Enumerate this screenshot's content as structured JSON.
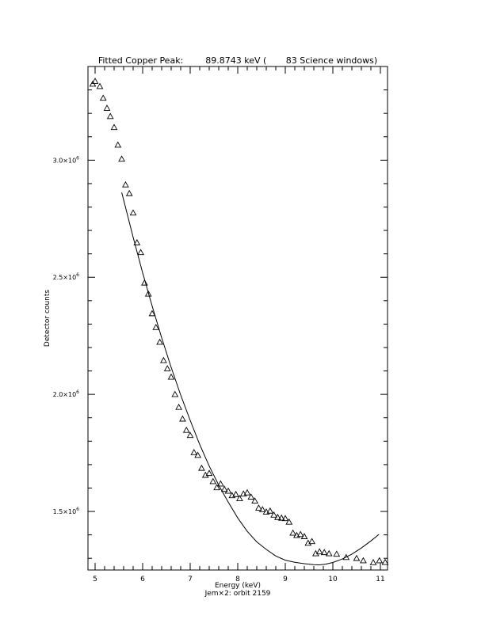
{
  "chart_data": {
    "type": "scatter",
    "title": "Fitted Copper Peak:        89.8743 keV (       83 Science windows)",
    "xlabel": "Energy (keV)",
    "ylabel": "Detector counts",
    "subtitle": "Jem×2: orbit 2159",
    "xlim": [
      4.85,
      11.15
    ],
    "ylim": [
      1250000,
      3400000
    ],
    "x_ticks": [
      {
        "value": 5,
        "label": "5"
      },
      {
        "value": 6,
        "label": "6"
      },
      {
        "value": 7,
        "label": "7"
      },
      {
        "value": 8,
        "label": "8"
      },
      {
        "value": 9,
        "label": "9"
      },
      {
        "value": 10,
        "label": "10"
      },
      {
        "value": 11,
        "label": "11"
      }
    ],
    "y_ticks": [
      {
        "value": 1500000,
        "mantissa": "1.5×10",
        "exp": "6"
      },
      {
        "value": 2000000,
        "mantissa": "2.0×10",
        "exp": "6"
      },
      {
        "value": 2500000,
        "mantissa": "2.5×10",
        "exp": "6"
      },
      {
        "value": 3000000,
        "mantissa": "3.0×10",
        "exp": "6"
      }
    ],
    "series": [
      {
        "marker": "triangle",
        "x": [
          4.95,
          5.0,
          5.1,
          5.17,
          5.25,
          5.32,
          5.4,
          5.48,
          5.56,
          5.64,
          5.72,
          5.8,
          5.88,
          5.96,
          6.04,
          6.12,
          6.2,
          6.28,
          6.36,
          6.44,
          6.52,
          6.6,
          6.68,
          6.76,
          6.84,
          6.92,
          7.0,
          7.08,
          7.16,
          7.24,
          7.32,
          7.4,
          7.48,
          7.56,
          7.64,
          7.72,
          7.8,
          7.88,
          7.96,
          8.04,
          8.12,
          8.2,
          8.28,
          8.36,
          8.44,
          8.52,
          8.6,
          8.68,
          8.76,
          8.84,
          8.92,
          9.0,
          9.08,
          9.16,
          9.24,
          9.32,
          9.4,
          9.48,
          9.56,
          9.64,
          9.72,
          9.82,
          9.92,
          10.08,
          10.28,
          10.5,
          10.64,
          10.85,
          10.98,
          11.1
        ],
        "y": [
          3325000,
          3337000,
          3315000,
          3265000,
          3222000,
          3187000,
          3140000,
          3065000,
          3005000,
          2895000,
          2858000,
          2775000,
          2648000,
          2606000,
          2476000,
          2429000,
          2345000,
          2286000,
          2223000,
          2145000,
          2110000,
          2074000,
          2000000,
          1945000,
          1895000,
          1847000,
          1825000,
          1752000,
          1740000,
          1685000,
          1655000,
          1663000,
          1628000,
          1602000,
          1618000,
          1595000,
          1587000,
          1568000,
          1573000,
          1555000,
          1575000,
          1580000,
          1562000,
          1545000,
          1515000,
          1508000,
          1498000,
          1502000,
          1485000,
          1475000,
          1472000,
          1470000,
          1455000,
          1408000,
          1398000,
          1402000,
          1393000,
          1365000,
          1372000,
          1320000,
          1328000,
          1325000,
          1320000,
          1318000,
          1304000,
          1300000,
          1290000,
          1282000,
          1290000,
          1283000
        ]
      },
      {
        "marker": "line",
        "x": [
          5.56,
          5.8,
          6.0,
          6.2,
          6.4,
          6.6,
          6.8,
          7.0,
          7.2,
          7.4,
          7.6,
          7.8,
          8.0,
          8.2,
          8.4,
          8.6,
          8.8,
          9.0,
          9.2,
          9.4,
          9.6,
          9.72,
          9.85,
          10.0,
          10.2,
          10.4,
          10.6,
          10.8,
          10.97
        ],
        "y": [
          2862000,
          2671000,
          2519000,
          2377000,
          2242000,
          2115000,
          1997000,
          1889000,
          1786000,
          1694000,
          1612000,
          1540000,
          1472000,
          1415000,
          1370000,
          1338000,
          1310000,
          1292000,
          1283000,
          1277000,
          1273000,
          1272000,
          1275000,
          1282000,
          1297000,
          1318000,
          1344000,
          1374000,
          1402000
        ]
      }
    ],
    "grid": false,
    "legend": "none"
  }
}
